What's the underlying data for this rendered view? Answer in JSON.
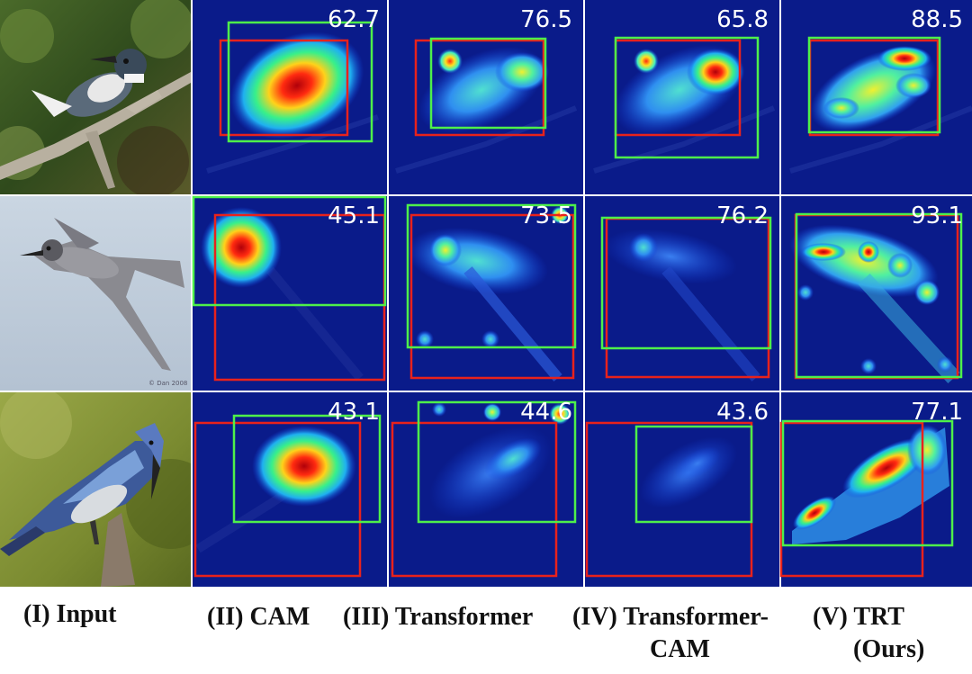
{
  "figure": {
    "columns": [
      {
        "caption": [
          "(I) Input"
        ]
      },
      {
        "caption": [
          "(II) CAM"
        ]
      },
      {
        "caption": [
          "(III) Transformer"
        ]
      },
      {
        "caption": [
          "(IV) Transformer-",
          "CAM"
        ]
      },
      {
        "caption": [
          "(V) TRT",
          "(Ours)"
        ]
      }
    ],
    "rows": [
      {
        "input_subject": "belted-kingfisher-photo",
        "scores": [
          "62.7",
          "76.5",
          "65.8",
          "88.5"
        ]
      },
      {
        "input_subject": "swallow-in-flight-photo",
        "watermark": "© Dan 2008",
        "scores": [
          "45.1",
          "73.5",
          "76.2",
          "93.1"
        ]
      },
      {
        "input_subject": "blue-jay-photo",
        "scores": [
          "43.1",
          "44.6",
          "43.6",
          "77.1"
        ]
      }
    ],
    "box_colors": {
      "ground_truth": "#e8221c",
      "prediction": "#4ef04a"
    },
    "heatmap_background": "#0a1b8a"
  }
}
